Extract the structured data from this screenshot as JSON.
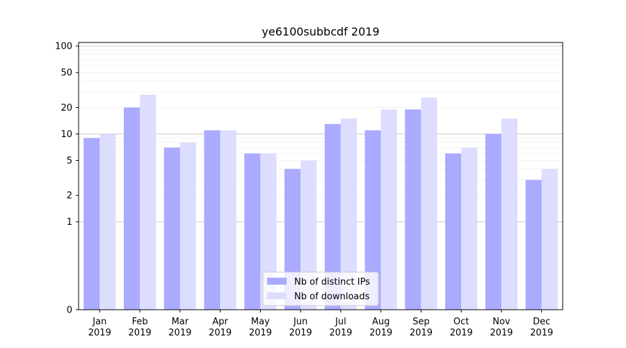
{
  "chart_data": {
    "type": "bar",
    "title": "ye6100subbcdf 2019",
    "xlabel": "",
    "ylabel": "",
    "y_scale": "symlog",
    "y_ticks": [
      0,
      1,
      2,
      5,
      10,
      20,
      50,
      100
    ],
    "ylim": [
      0,
      110
    ],
    "grid": true,
    "legend_position": "lower-center",
    "categories": [
      {
        "month": "Jan",
        "year": "2019"
      },
      {
        "month": "Feb",
        "year": "2019"
      },
      {
        "month": "Mar",
        "year": "2019"
      },
      {
        "month": "Apr",
        "year": "2019"
      },
      {
        "month": "May",
        "year": "2019"
      },
      {
        "month": "Jun",
        "year": "2019"
      },
      {
        "month": "Jul",
        "year": "2019"
      },
      {
        "month": "Aug",
        "year": "2019"
      },
      {
        "month": "Sep",
        "year": "2019"
      },
      {
        "month": "Oct",
        "year": "2019"
      },
      {
        "month": "Nov",
        "year": "2019"
      },
      {
        "month": "Dec",
        "year": "2019"
      }
    ],
    "series": [
      {
        "name": "Nb of distinct IPs",
        "color": "#aaaaff",
        "values": [
          9,
          20,
          7,
          11,
          6,
          4,
          13,
          11,
          19,
          6,
          10,
          3
        ]
      },
      {
        "name": "Nb of downloads",
        "color": "#ddddff",
        "values": [
          10,
          28,
          8,
          11,
          6,
          5,
          15,
          19,
          26,
          7,
          15,
          4
        ]
      }
    ]
  }
}
